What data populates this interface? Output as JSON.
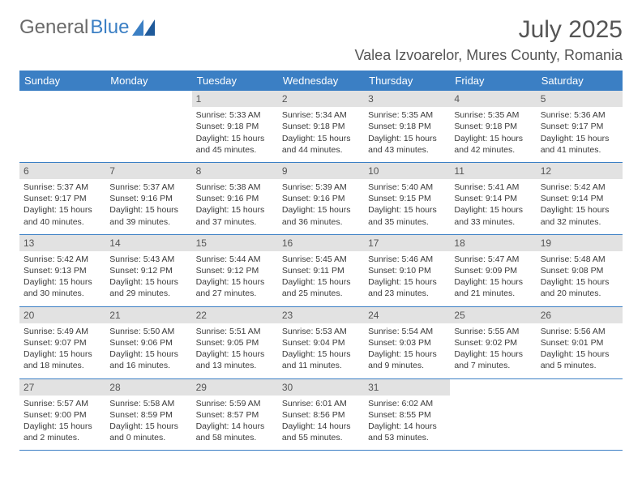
{
  "logo": {
    "text1": "General",
    "text2": "Blue"
  },
  "title": "July 2025",
  "location": "Valea Izvoarelor, Mures County, Romania",
  "colors": {
    "header_bg": "#3b7fc4",
    "header_text": "#ffffff",
    "daynum_bg": "#e2e2e2",
    "body_text": "#3a3a3a",
    "title_text": "#555555",
    "row_border": "#3b7fc4"
  },
  "weekdays": [
    "Sunday",
    "Monday",
    "Tuesday",
    "Wednesday",
    "Thursday",
    "Friday",
    "Saturday"
  ],
  "weeks": [
    [
      null,
      null,
      {
        "n": "1",
        "sr": "5:33 AM",
        "ss": "9:18 PM",
        "dl": "15 hours and 45 minutes."
      },
      {
        "n": "2",
        "sr": "5:34 AM",
        "ss": "9:18 PM",
        "dl": "15 hours and 44 minutes."
      },
      {
        "n": "3",
        "sr": "5:35 AM",
        "ss": "9:18 PM",
        "dl": "15 hours and 43 minutes."
      },
      {
        "n": "4",
        "sr": "5:35 AM",
        "ss": "9:18 PM",
        "dl": "15 hours and 42 minutes."
      },
      {
        "n": "5",
        "sr": "5:36 AM",
        "ss": "9:17 PM",
        "dl": "15 hours and 41 minutes."
      }
    ],
    [
      {
        "n": "6",
        "sr": "5:37 AM",
        "ss": "9:17 PM",
        "dl": "15 hours and 40 minutes."
      },
      {
        "n": "7",
        "sr": "5:37 AM",
        "ss": "9:16 PM",
        "dl": "15 hours and 39 minutes."
      },
      {
        "n": "8",
        "sr": "5:38 AM",
        "ss": "9:16 PM",
        "dl": "15 hours and 37 minutes."
      },
      {
        "n": "9",
        "sr": "5:39 AM",
        "ss": "9:16 PM",
        "dl": "15 hours and 36 minutes."
      },
      {
        "n": "10",
        "sr": "5:40 AM",
        "ss": "9:15 PM",
        "dl": "15 hours and 35 minutes."
      },
      {
        "n": "11",
        "sr": "5:41 AM",
        "ss": "9:14 PM",
        "dl": "15 hours and 33 minutes."
      },
      {
        "n": "12",
        "sr": "5:42 AM",
        "ss": "9:14 PM",
        "dl": "15 hours and 32 minutes."
      }
    ],
    [
      {
        "n": "13",
        "sr": "5:42 AM",
        "ss": "9:13 PM",
        "dl": "15 hours and 30 minutes."
      },
      {
        "n": "14",
        "sr": "5:43 AM",
        "ss": "9:12 PM",
        "dl": "15 hours and 29 minutes."
      },
      {
        "n": "15",
        "sr": "5:44 AM",
        "ss": "9:12 PM",
        "dl": "15 hours and 27 minutes."
      },
      {
        "n": "16",
        "sr": "5:45 AM",
        "ss": "9:11 PM",
        "dl": "15 hours and 25 minutes."
      },
      {
        "n": "17",
        "sr": "5:46 AM",
        "ss": "9:10 PM",
        "dl": "15 hours and 23 minutes."
      },
      {
        "n": "18",
        "sr": "5:47 AM",
        "ss": "9:09 PM",
        "dl": "15 hours and 21 minutes."
      },
      {
        "n": "19",
        "sr": "5:48 AM",
        "ss": "9:08 PM",
        "dl": "15 hours and 20 minutes."
      }
    ],
    [
      {
        "n": "20",
        "sr": "5:49 AM",
        "ss": "9:07 PM",
        "dl": "15 hours and 18 minutes."
      },
      {
        "n": "21",
        "sr": "5:50 AM",
        "ss": "9:06 PM",
        "dl": "15 hours and 16 minutes."
      },
      {
        "n": "22",
        "sr": "5:51 AM",
        "ss": "9:05 PM",
        "dl": "15 hours and 13 minutes."
      },
      {
        "n": "23",
        "sr": "5:53 AM",
        "ss": "9:04 PM",
        "dl": "15 hours and 11 minutes."
      },
      {
        "n": "24",
        "sr": "5:54 AM",
        "ss": "9:03 PM",
        "dl": "15 hours and 9 minutes."
      },
      {
        "n": "25",
        "sr": "5:55 AM",
        "ss": "9:02 PM",
        "dl": "15 hours and 7 minutes."
      },
      {
        "n": "26",
        "sr": "5:56 AM",
        "ss": "9:01 PM",
        "dl": "15 hours and 5 minutes."
      }
    ],
    [
      {
        "n": "27",
        "sr": "5:57 AM",
        "ss": "9:00 PM",
        "dl": "15 hours and 2 minutes."
      },
      {
        "n": "28",
        "sr": "5:58 AM",
        "ss": "8:59 PM",
        "dl": "15 hours and 0 minutes."
      },
      {
        "n": "29",
        "sr": "5:59 AM",
        "ss": "8:57 PM",
        "dl": "14 hours and 58 minutes."
      },
      {
        "n": "30",
        "sr": "6:01 AM",
        "ss": "8:56 PM",
        "dl": "14 hours and 55 minutes."
      },
      {
        "n": "31",
        "sr": "6:02 AM",
        "ss": "8:55 PM",
        "dl": "14 hours and 53 minutes."
      },
      null,
      null
    ]
  ],
  "labels": {
    "sunrise": "Sunrise: ",
    "sunset": "Sunset: ",
    "daylight": "Daylight: "
  }
}
